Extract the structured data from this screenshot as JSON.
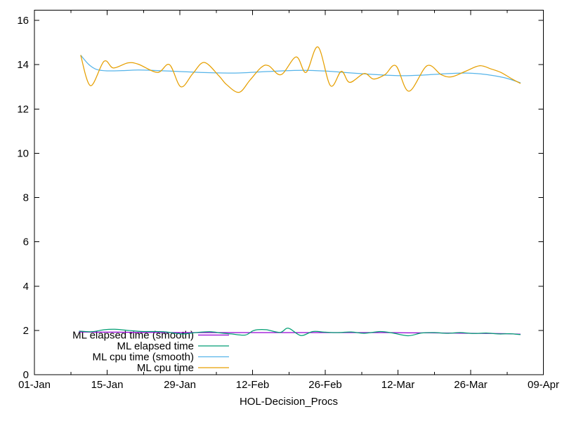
{
  "window": {
    "background": "#ffffff",
    "text_color": "#000000",
    "axis_color": "#000000"
  },
  "chart_data": {
    "type": "line",
    "title": "",
    "xlabel": "HOL-Decision_Procs",
    "ylabel": "",
    "grid": false,
    "legend_position": "bottom-left-inside",
    "x_unit": "days since 01-Jan",
    "xlim": [
      0,
      98
    ],
    "ylim": [
      0,
      16.46
    ],
    "x_ticks": {
      "labels": [
        "01-Jan",
        "15-Jan",
        "29-Jan",
        "12-Feb",
        "26-Feb",
        "12-Mar",
        "26-Mar",
        "09-Apr"
      ],
      "days": [
        0,
        14,
        28,
        42,
        56,
        70,
        84,
        98
      ],
      "minor_days": [
        7,
        21,
        35,
        49,
        63,
        77,
        91
      ]
    },
    "y_ticks": [
      0,
      2,
      4,
      6,
      8,
      10,
      12,
      14,
      16
    ],
    "series": [
      {
        "name": "ML elapsed time (smooth)",
        "color": "#9400d3",
        "points": [
          [
            8.6,
            1.93
          ],
          [
            12,
            1.92
          ],
          [
            16,
            1.92
          ],
          [
            20,
            1.91
          ],
          [
            24,
            1.91
          ],
          [
            28,
            1.9
          ],
          [
            32,
            1.9
          ],
          [
            36,
            1.9
          ],
          [
            40,
            1.9
          ],
          [
            44,
            1.9
          ],
          [
            48,
            1.9
          ],
          [
            52,
            1.9
          ],
          [
            56,
            1.9
          ],
          [
            60,
            1.9
          ],
          [
            64,
            1.9
          ],
          [
            68,
            1.9
          ],
          [
            72,
            1.89
          ],
          [
            76,
            1.89
          ],
          [
            80,
            1.88
          ],
          [
            84,
            1.87
          ],
          [
            88,
            1.86
          ],
          [
            91,
            1.85
          ],
          [
            93.6,
            1.83
          ]
        ]
      },
      {
        "name": "ML elapsed time",
        "color": "#009e73",
        "points": [
          [
            8.6,
            1.97
          ],
          [
            11,
            1.94
          ],
          [
            13.5,
            2.03
          ],
          [
            15.5,
            2.05
          ],
          [
            18,
            2.0
          ],
          [
            21,
            1.95
          ],
          [
            24.8,
            1.94
          ],
          [
            28.4,
            1.84
          ],
          [
            31,
            1.9
          ],
          [
            33.8,
            1.94
          ],
          [
            36,
            1.88
          ],
          [
            37.9,
            1.84
          ],
          [
            40.6,
            1.79
          ],
          [
            42.3,
            2.0
          ],
          [
            44.6,
            2.03
          ],
          [
            47.3,
            1.91
          ],
          [
            48.9,
            2.1
          ],
          [
            51.3,
            1.77
          ],
          [
            53.6,
            1.95
          ],
          [
            56,
            1.92
          ],
          [
            58.5,
            1.9
          ],
          [
            61,
            1.93
          ],
          [
            63.5,
            1.87
          ],
          [
            66.6,
            1.95
          ],
          [
            69,
            1.88
          ],
          [
            72,
            1.76
          ],
          [
            74.5,
            1.88
          ],
          [
            77,
            1.9
          ],
          [
            79.5,
            1.87
          ],
          [
            82,
            1.9
          ],
          [
            84.5,
            1.86
          ],
          [
            87,
            1.88
          ],
          [
            89.5,
            1.84
          ],
          [
            91.5,
            1.85
          ],
          [
            93.6,
            1.81
          ]
        ]
      },
      {
        "name": "ML cpu time (smooth)",
        "color": "#56b4e9",
        "points": [
          [
            8.9,
            14.43
          ],
          [
            10.5,
            14.0
          ],
          [
            12,
            13.78
          ],
          [
            14,
            13.72
          ],
          [
            17,
            13.73
          ],
          [
            20,
            13.76
          ],
          [
            23,
            13.74
          ],
          [
            26,
            13.71
          ],
          [
            29,
            13.68
          ],
          [
            32,
            13.65
          ],
          [
            35,
            13.63
          ],
          [
            38,
            13.62
          ],
          [
            41,
            13.64
          ],
          [
            44,
            13.68
          ],
          [
            47,
            13.71
          ],
          [
            50,
            13.74
          ],
          [
            53,
            13.74
          ],
          [
            56,
            13.71
          ],
          [
            59,
            13.66
          ],
          [
            62,
            13.61
          ],
          [
            65,
            13.56
          ],
          [
            68,
            13.52
          ],
          [
            71,
            13.5
          ],
          [
            74,
            13.52
          ],
          [
            77,
            13.56
          ],
          [
            80,
            13.6
          ],
          [
            83,
            13.62
          ],
          [
            86,
            13.58
          ],
          [
            88.5,
            13.5
          ],
          [
            91,
            13.38
          ],
          [
            93.6,
            13.18
          ]
        ]
      },
      {
        "name": "ML cpu time",
        "color": "#e69f00",
        "points": [
          [
            8.9,
            14.43
          ],
          [
            10.8,
            13.05
          ],
          [
            13.4,
            14.15
          ],
          [
            15.2,
            13.85
          ],
          [
            18,
            14.08
          ],
          [
            20,
            14.02
          ],
          [
            23.7,
            13.65
          ],
          [
            26,
            14.0
          ],
          [
            28.2,
            13.0
          ],
          [
            30.5,
            13.6
          ],
          [
            32.7,
            14.1
          ],
          [
            35.5,
            13.5
          ],
          [
            37,
            13.1
          ],
          [
            39.4,
            12.75
          ],
          [
            41.5,
            13.3
          ],
          [
            43.7,
            13.88
          ],
          [
            45.1,
            13.95
          ],
          [
            47.5,
            13.55
          ],
          [
            50.4,
            14.35
          ],
          [
            52.3,
            13.65
          ],
          [
            54.6,
            14.8
          ],
          [
            57,
            13.05
          ],
          [
            59.1,
            13.7
          ],
          [
            60.7,
            13.2
          ],
          [
            63.5,
            13.6
          ],
          [
            65.3,
            13.35
          ],
          [
            67.5,
            13.55
          ],
          [
            69.6,
            13.95
          ],
          [
            72.1,
            12.8
          ],
          [
            75.6,
            13.95
          ],
          [
            78.3,
            13.55
          ],
          [
            80.3,
            13.45
          ],
          [
            83,
            13.7
          ],
          [
            85.7,
            13.95
          ],
          [
            88,
            13.8
          ],
          [
            89.8,
            13.65
          ],
          [
            92,
            13.35
          ],
          [
            93.6,
            13.15
          ]
        ]
      }
    ]
  }
}
